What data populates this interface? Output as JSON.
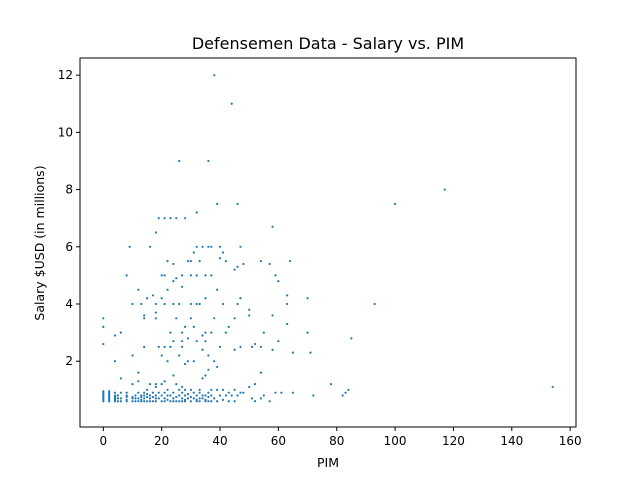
{
  "chart_data": {
    "type": "scatter",
    "title": "Defensemen Data - Salary vs. PIM",
    "xlabel": "PIM",
    "ylabel": "Salary $USD (in millions)",
    "xlim": [
      -8,
      162
    ],
    "ylim": [
      -0.3,
      12.6
    ],
    "xticks": [
      0,
      20,
      40,
      60,
      80,
      100,
      120,
      140,
      160
    ],
    "yticks": [
      2,
      4,
      6,
      8,
      10,
      12
    ],
    "grid": false,
    "marker_color": "#1f77b4",
    "series": [
      {
        "points": [
          [
            0,
            0.6
          ],
          [
            0,
            0.65
          ],
          [
            0,
            0.7
          ],
          [
            0,
            0.75
          ],
          [
            0,
            0.8
          ],
          [
            0,
            0.85
          ],
          [
            0,
            0.9
          ],
          [
            0,
            0.95
          ],
          [
            0,
            2.6
          ],
          [
            0,
            3.2
          ],
          [
            0,
            3.5
          ],
          [
            2,
            0.6
          ],
          [
            2,
            0.65
          ],
          [
            2,
            0.7
          ],
          [
            2,
            0.75
          ],
          [
            2,
            0.8
          ],
          [
            2,
            0.85
          ],
          [
            2,
            0.9
          ],
          [
            2,
            0.95
          ],
          [
            4,
            0.6
          ],
          [
            4,
            0.65
          ],
          [
            4,
            0.7
          ],
          [
            4,
            0.75
          ],
          [
            4,
            0.8
          ],
          [
            4,
            0.9
          ],
          [
            4,
            2.0
          ],
          [
            4,
            2.9
          ],
          [
            5,
            0.6
          ],
          [
            5,
            0.7
          ],
          [
            5,
            0.8
          ],
          [
            6,
            0.6
          ],
          [
            6,
            0.7
          ],
          [
            6,
            0.9
          ],
          [
            6,
            1.4
          ],
          [
            6,
            3.0
          ],
          [
            8,
            0.6
          ],
          [
            8,
            0.65
          ],
          [
            8,
            0.75
          ],
          [
            8,
            0.8
          ],
          [
            8,
            0.9
          ],
          [
            8,
            5.0
          ],
          [
            9,
            6.0
          ],
          [
            10,
            0.6
          ],
          [
            10,
            0.7
          ],
          [
            10,
            0.75
          ],
          [
            10,
            1.2
          ],
          [
            10,
            2.2
          ],
          [
            10,
            4.0
          ],
          [
            11,
            0.6
          ],
          [
            11,
            0.7
          ],
          [
            11,
            0.8
          ],
          [
            12,
            0.6
          ],
          [
            12,
            0.7
          ],
          [
            12,
            0.9
          ],
          [
            12,
            1.3
          ],
          [
            12,
            1.6
          ],
          [
            12,
            4.5
          ],
          [
            13,
            0.6
          ],
          [
            13,
            0.65
          ],
          [
            13,
            0.75
          ],
          [
            13,
            0.8
          ],
          [
            13,
            4.0
          ],
          [
            14,
            0.6
          ],
          [
            14,
            0.7
          ],
          [
            14,
            0.8
          ],
          [
            14,
            0.9
          ],
          [
            14,
            2.5
          ],
          [
            14,
            3.5
          ],
          [
            14,
            3.6
          ],
          [
            15,
            0.6
          ],
          [
            15,
            0.75
          ],
          [
            15,
            0.85
          ],
          [
            15,
            1.0
          ],
          [
            15,
            4.2
          ],
          [
            16,
            0.6
          ],
          [
            16,
            0.7
          ],
          [
            16,
            0.8
          ],
          [
            16,
            1.2
          ],
          [
            16,
            6.0
          ],
          [
            17,
            0.6
          ],
          [
            17,
            0.75
          ],
          [
            17,
            0.9
          ],
          [
            17,
            4.3
          ],
          [
            18,
            0.6
          ],
          [
            18,
            0.7
          ],
          [
            18,
            0.8
          ],
          [
            18,
            1.1
          ],
          [
            18,
            1.2
          ],
          [
            18,
            3.5
          ],
          [
            18,
            3.7
          ],
          [
            18,
            4.0
          ],
          [
            18,
            6.5
          ],
          [
            19,
            0.7
          ],
          [
            19,
            0.9
          ],
          [
            19,
            2.5
          ],
          [
            19,
            7.0
          ],
          [
            20,
            0.6
          ],
          [
            20,
            0.8
          ],
          [
            20,
            1.2
          ],
          [
            20,
            2.2
          ],
          [
            20,
            4.2
          ],
          [
            20,
            5.0
          ],
          [
            21,
            0.6
          ],
          [
            21,
            0.7
          ],
          [
            21,
            0.9
          ],
          [
            21,
            1.3
          ],
          [
            21,
            2.5
          ],
          [
            21,
            4.0
          ],
          [
            21,
            5.0
          ],
          [
            21,
            7.0
          ],
          [
            22,
            0.65
          ],
          [
            22,
            0.8
          ],
          [
            22,
            1.0
          ],
          [
            22,
            2.0
          ],
          [
            22,
            4.5
          ],
          [
            22,
            5.5
          ],
          [
            23,
            0.6
          ],
          [
            23,
            0.8
          ],
          [
            23,
            2.5
          ],
          [
            23,
            3.0
          ],
          [
            23,
            7.0
          ],
          [
            24,
            0.6
          ],
          [
            24,
            0.7
          ],
          [
            24,
            0.9
          ],
          [
            24,
            1.5
          ],
          [
            24,
            2.7
          ],
          [
            24,
            4.0
          ],
          [
            24,
            4.8
          ],
          [
            24,
            5.4
          ],
          [
            25,
            0.6
          ],
          [
            25,
            0.75
          ],
          [
            25,
            1.2
          ],
          [
            25,
            3.5
          ],
          [
            25,
            4.9
          ],
          [
            25,
            7.0
          ],
          [
            26,
            0.6
          ],
          [
            26,
            0.8
          ],
          [
            26,
            1.0
          ],
          [
            26,
            2.2
          ],
          [
            26,
            4.0
          ],
          [
            26,
            9.0
          ],
          [
            27,
            0.6
          ],
          [
            27,
            0.7
          ],
          [
            27,
            0.9
          ],
          [
            27,
            1.1
          ],
          [
            27,
            2.5
          ],
          [
            27,
            2.7
          ],
          [
            27,
            3.0
          ],
          [
            27,
            4.6
          ],
          [
            27,
            5.0
          ],
          [
            28,
            0.6
          ],
          [
            28,
            0.65
          ],
          [
            28,
            0.8
          ],
          [
            28,
            1.0
          ],
          [
            28,
            1.9
          ],
          [
            28,
            3.2
          ],
          [
            28,
            7.0
          ],
          [
            29,
            0.7
          ],
          [
            29,
            0.85
          ],
          [
            29,
            2.0
          ],
          [
            29,
            2.8
          ],
          [
            29,
            5.5
          ],
          [
            30,
            0.6
          ],
          [
            30,
            0.75
          ],
          [
            30,
            1.0
          ],
          [
            30,
            3.5
          ],
          [
            30,
            4.0
          ],
          [
            30,
            5.0
          ],
          [
            30,
            5.5
          ],
          [
            31,
            0.7
          ],
          [
            31,
            0.9
          ],
          [
            31,
            2.0
          ],
          [
            31,
            3.2
          ],
          [
            31,
            5.8
          ],
          [
            32,
            0.6
          ],
          [
            32,
            0.65
          ],
          [
            32,
            0.8
          ],
          [
            32,
            2.7
          ],
          [
            32,
            4.0
          ],
          [
            32,
            5.0
          ],
          [
            32,
            6.0
          ],
          [
            32,
            7.2
          ],
          [
            33,
            0.6
          ],
          [
            33,
            0.7
          ],
          [
            33,
            0.9
          ],
          [
            33,
            1.0
          ],
          [
            33,
            4.0
          ],
          [
            33,
            5.5
          ],
          [
            34,
            0.7
          ],
          [
            34,
            0.8
          ],
          [
            34,
            1.4
          ],
          [
            34,
            2.4
          ],
          [
            34,
            2.9
          ],
          [
            34,
            6.0
          ],
          [
            35,
            0.6
          ],
          [
            35,
            0.65
          ],
          [
            35,
            0.8
          ],
          [
            35,
            1.5
          ],
          [
            35,
            2.7
          ],
          [
            35,
            3.0
          ],
          [
            35,
            4.2
          ],
          [
            35,
            5.0
          ],
          [
            36,
            0.6
          ],
          [
            36,
            0.75
          ],
          [
            36,
            0.9
          ],
          [
            36,
            1.7
          ],
          [
            36,
            2.2
          ],
          [
            36,
            6.0
          ],
          [
            36,
            9.0
          ],
          [
            37,
            0.6
          ],
          [
            37,
            0.8
          ],
          [
            37,
            1.0
          ],
          [
            37,
            3.0
          ],
          [
            37,
            5.0
          ],
          [
            37,
            6.0
          ],
          [
            38,
            0.7
          ],
          [
            38,
            2.0
          ],
          [
            38,
            3.5
          ],
          [
            38,
            12.0
          ],
          [
            39,
            0.6
          ],
          [
            39,
            1.0
          ],
          [
            39,
            1.8
          ],
          [
            39,
            4.5
          ],
          [
            39,
            7.5
          ],
          [
            40,
            0.8
          ],
          [
            40,
            2.5
          ],
          [
            40,
            5.6
          ],
          [
            40,
            6.0
          ],
          [
            41,
            0.65
          ],
          [
            41,
            1.0
          ],
          [
            41,
            4.0
          ],
          [
            41,
            5.8
          ],
          [
            42,
            0.8
          ],
          [
            42,
            3.0
          ],
          [
            42,
            5.5
          ],
          [
            43,
            0.6
          ],
          [
            43,
            0.9
          ],
          [
            43,
            3.2
          ],
          [
            44,
            0.8
          ],
          [
            44,
            11.0
          ],
          [
            45,
            0.6
          ],
          [
            45,
            1.0
          ],
          [
            45,
            2.4
          ],
          [
            45,
            3.5
          ],
          [
            45,
            5.2
          ],
          [
            46,
            0.8
          ],
          [
            46,
            4.0
          ],
          [
            46,
            5.3
          ],
          [
            46,
            7.5
          ],
          [
            47,
            0.9
          ],
          [
            47,
            2.5
          ],
          [
            47,
            4.2
          ],
          [
            47,
            6.0
          ],
          [
            48,
            0.9
          ],
          [
            48,
            5.4
          ],
          [
            50,
            1.1
          ],
          [
            50,
            3.6
          ],
          [
            50,
            3.8
          ],
          [
            51,
            0.7
          ],
          [
            51,
            2.5
          ],
          [
            52,
            0.6
          ],
          [
            52,
            1.2
          ],
          [
            52,
            2.6
          ],
          [
            54,
            0.7
          ],
          [
            54,
            1.6
          ],
          [
            54,
            2.5
          ],
          [
            54,
            5.5
          ],
          [
            55,
            0.8
          ],
          [
            55,
            3.0
          ],
          [
            57,
            0.6
          ],
          [
            57,
            5.4
          ],
          [
            58,
            2.4
          ],
          [
            58,
            3.6
          ],
          [
            58,
            6.7
          ],
          [
            59,
            0.9
          ],
          [
            59,
            5.0
          ],
          [
            60,
            2.7
          ],
          [
            60,
            4.8
          ],
          [
            61,
            0.9
          ],
          [
            63,
            3.3
          ],
          [
            63,
            4.0
          ],
          [
            63,
            4.3
          ],
          [
            64,
            5.5
          ],
          [
            65,
            0.9
          ],
          [
            65,
            2.3
          ],
          [
            70,
            3.0
          ],
          [
            70,
            4.2
          ],
          [
            71,
            2.3
          ],
          [
            72,
            0.8
          ],
          [
            78,
            1.2
          ],
          [
            82,
            0.8
          ],
          [
            83,
            0.9
          ],
          [
            84,
            1.0
          ],
          [
            85,
            2.8
          ],
          [
            93,
            4.0
          ],
          [
            100,
            7.5
          ],
          [
            117,
            8.0
          ],
          [
            154,
            1.1
          ]
        ]
      }
    ]
  }
}
